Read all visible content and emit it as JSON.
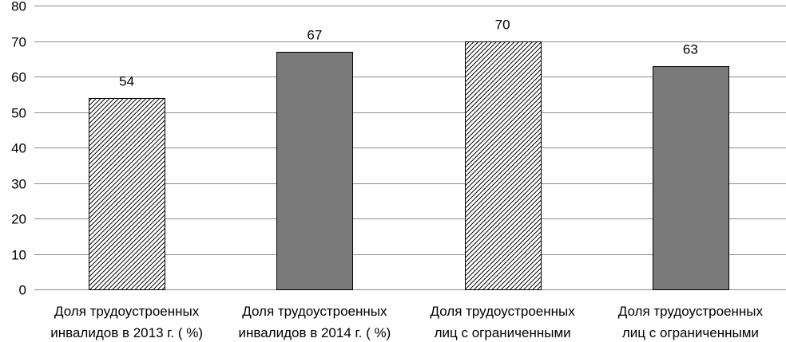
{
  "chart_data": {
    "type": "bar",
    "categories": [
      [
        "Доля трудоустроенных",
        "инвалидов в 2013 г. ( %)"
      ],
      [
        "Доля трудоустроенных",
        "инвалидов в 2014 г. ( %)"
      ],
      [
        "Доля трудоустроенных",
        "лиц с ограниченными"
      ],
      [
        "Доля трудоустроенных",
        "лиц с ограниченными"
      ]
    ],
    "values": [
      54,
      67,
      70,
      63
    ],
    "data_labels": [
      "54",
      "67",
      "70",
      "63"
    ],
    "bar_styles": [
      "hatched",
      "solid",
      "hatched",
      "solid"
    ],
    "ylim": [
      0,
      80
    ],
    "yticks": [
      0,
      10,
      20,
      30,
      40,
      50,
      60,
      70,
      80
    ],
    "grid": true,
    "legend": "none",
    "title": "",
    "xlabel": "",
    "ylabel": "",
    "colors": {
      "solid_fill": "#7a7a7a",
      "hatch_fill": "#ffffff",
      "hatch_line": "#000000",
      "bar_stroke": "#000000",
      "grid": "#8c8c8c"
    }
  }
}
